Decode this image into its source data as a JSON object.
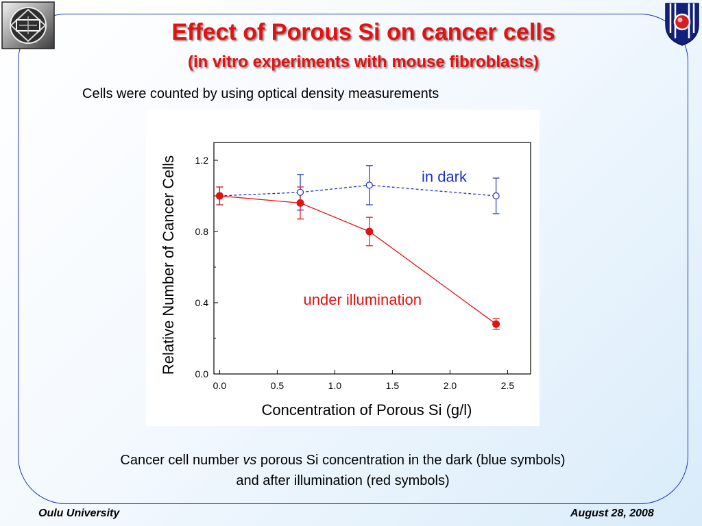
{
  "header": {
    "title": "Effect of Porous Si on cancer cells",
    "subtitle": "(in vitro experiments with mouse fibroblasts)",
    "intro": "Cells were counted by using optical density measurements",
    "left_logo_icon": "university-emblem-icon",
    "right_logo_icon": "institute-logo-icon"
  },
  "chart_data": {
    "type": "line",
    "xlabel": "Concentration of Porous Si (g/l)",
    "ylabel": "Relative Number of Cancer Cells",
    "xlim": [
      -0.05,
      2.7
    ],
    "ylim": [
      0.0,
      1.3
    ],
    "xticks": [
      "0.0",
      "0.5",
      "1.0",
      "1.5",
      "2.0",
      "2.5"
    ],
    "xtick_values": [
      0.0,
      0.5,
      1.0,
      1.5,
      2.0,
      2.5
    ],
    "yticks": [
      "0.0",
      "0.4",
      "0.8",
      "1.2"
    ],
    "ytick_values": [
      0.0,
      0.4,
      0.8,
      1.2
    ],
    "yminor_ticks": [
      0.2,
      0.6,
      1.0
    ],
    "series": [
      {
        "name": "in dark",
        "color": "#1b2fcf",
        "line_style": "dashed",
        "marker": "open-circle",
        "x": [
          0.0,
          0.7,
          1.3,
          2.4
        ],
        "y": [
          1.0,
          1.02,
          1.06,
          1.0
        ],
        "err": [
          0.05,
          0.1,
          0.11,
          0.1
        ]
      },
      {
        "name": "under illumination",
        "color": "#e3110f",
        "line_style": "solid",
        "marker": "filled-circle",
        "x": [
          0.0,
          0.7,
          1.3,
          2.4
        ],
        "y": [
          1.0,
          0.96,
          0.8,
          0.28
        ],
        "err": [
          0.05,
          0.09,
          0.08,
          0.03
        ]
      }
    ],
    "annotations": [
      {
        "text": "in dark",
        "color": "#1b2fcf",
        "x": 1.95,
        "y": 1.11
      },
      {
        "text": "under illumination",
        "color": "#e3110f",
        "x": 1.24,
        "y": 0.42
      }
    ]
  },
  "caption": {
    "line1_before": "Cancer cell number ",
    "line1_em": "vs",
    "line1_after": " porous Si concentration in the dark (blue symbols)",
    "line2": "and after illumination (red symbols)"
  },
  "footer": {
    "left": "Oulu University",
    "right": "August 28, 2008"
  }
}
